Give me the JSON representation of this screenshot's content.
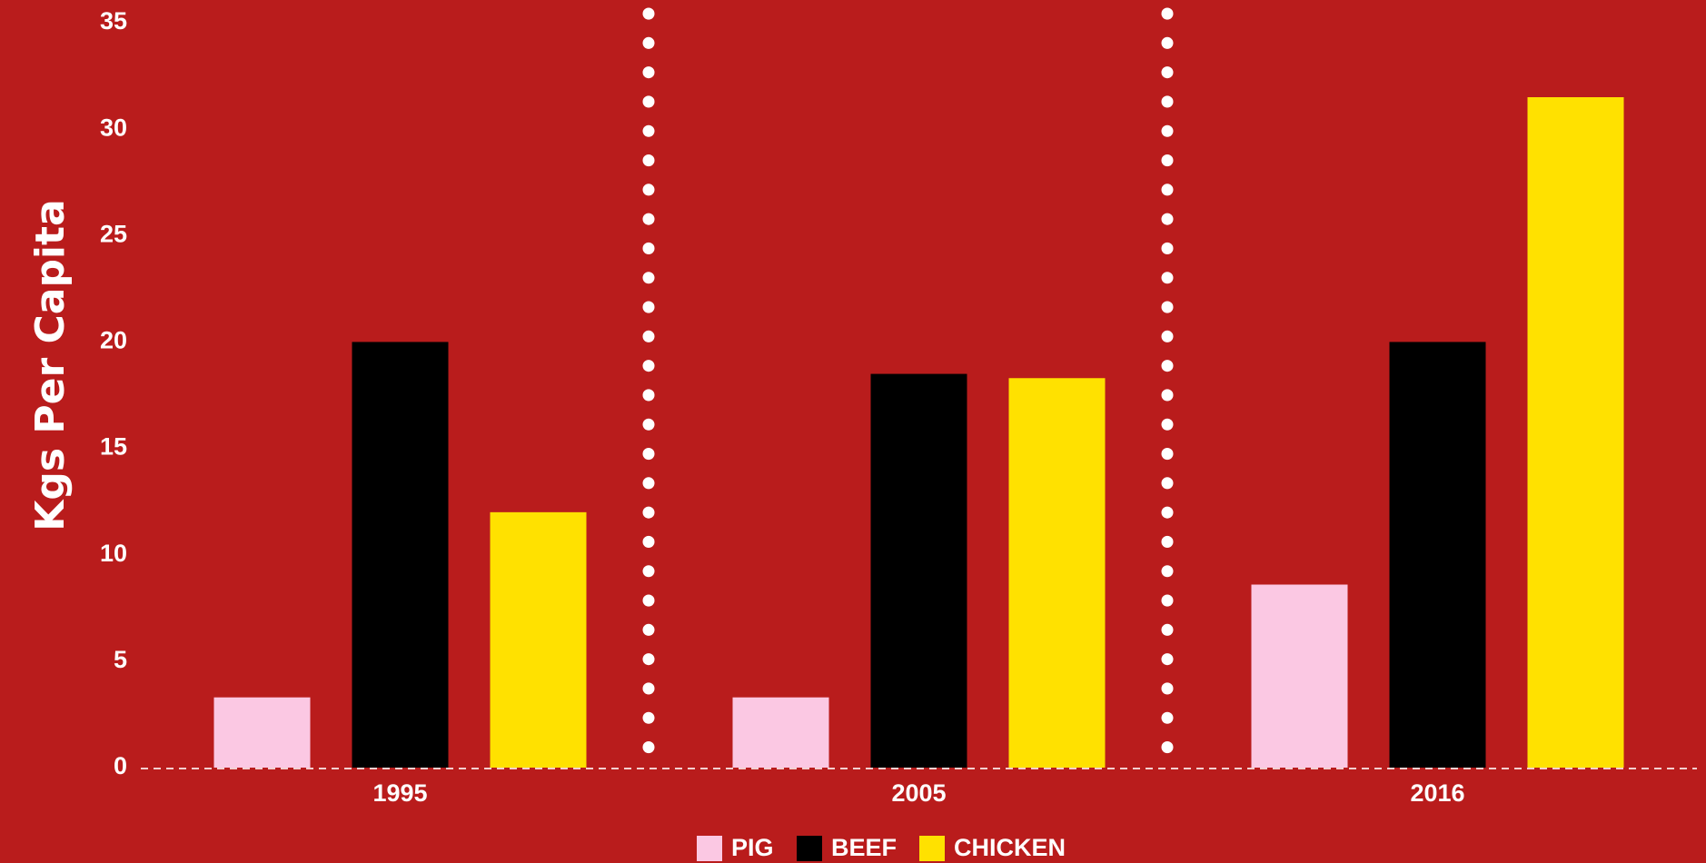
{
  "chart_data": {
    "type": "bar",
    "categories": [
      "1995",
      "2005",
      "2016"
    ],
    "series": [
      {
        "name": "PIG",
        "values": [
          3.3,
          3.3,
          8.6
        ],
        "color": "#fbc8e3"
      },
      {
        "name": "BEEF",
        "values": [
          20.0,
          18.5,
          20.0
        ],
        "color": "#000000"
      },
      {
        "name": "CHICKEN",
        "values": [
          12.0,
          18.3,
          31.5
        ],
        "color": "#ffe100"
      }
    ],
    "title": "",
    "xlabel": "",
    "ylabel": "Kgs Per Capita",
    "ylim": [
      0,
      35
    ],
    "yticks": [
      "0",
      "5",
      "10",
      "15",
      "20",
      "25",
      "30",
      "35"
    ],
    "grid": false,
    "legend": "bottom-center",
    "background": "#b91c1c",
    "category_separators": "dotted white vertical lines"
  }
}
